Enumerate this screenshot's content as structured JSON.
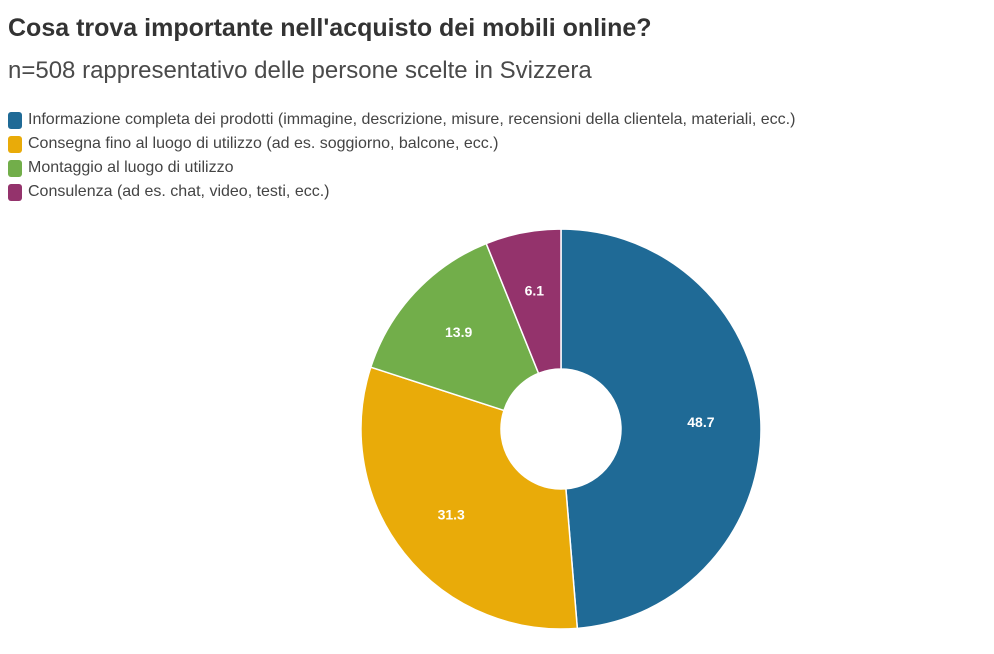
{
  "header": {
    "title": "Cosa trova importante nell'acquisto dei mobili online?",
    "subtitle": "n=508 rappresentativo delle persone scelte in Svizzera"
  },
  "chart_data": {
    "type": "pie",
    "donut": true,
    "title": "Cosa trova importante nell'acquisto dei mobili online?",
    "subtitle": "n=508 rappresentativo delle persone scelte in Svizzera",
    "legend_placement": "top-left",
    "categories": [
      "Informazione completa dei prodotti (immagine, descrizione, misure, recensioni della clientela, materiali, ecc.)",
      "Consegna fino al luogo di utilizzo (ad es. soggiorno, balcone, ecc.)",
      "Montaggio al luogo di utilizzo",
      "Consulenza (ad es. chat, video, testi, ecc.)"
    ],
    "values": [
      48.7,
      31.3,
      13.9,
      6.1
    ],
    "value_labels": [
      "48.7",
      "31.3",
      "13.9",
      "6.1"
    ],
    "colors": [
      "#1f6a96",
      "#e9ab09",
      "#72ae4a",
      "#94336c"
    ]
  }
}
